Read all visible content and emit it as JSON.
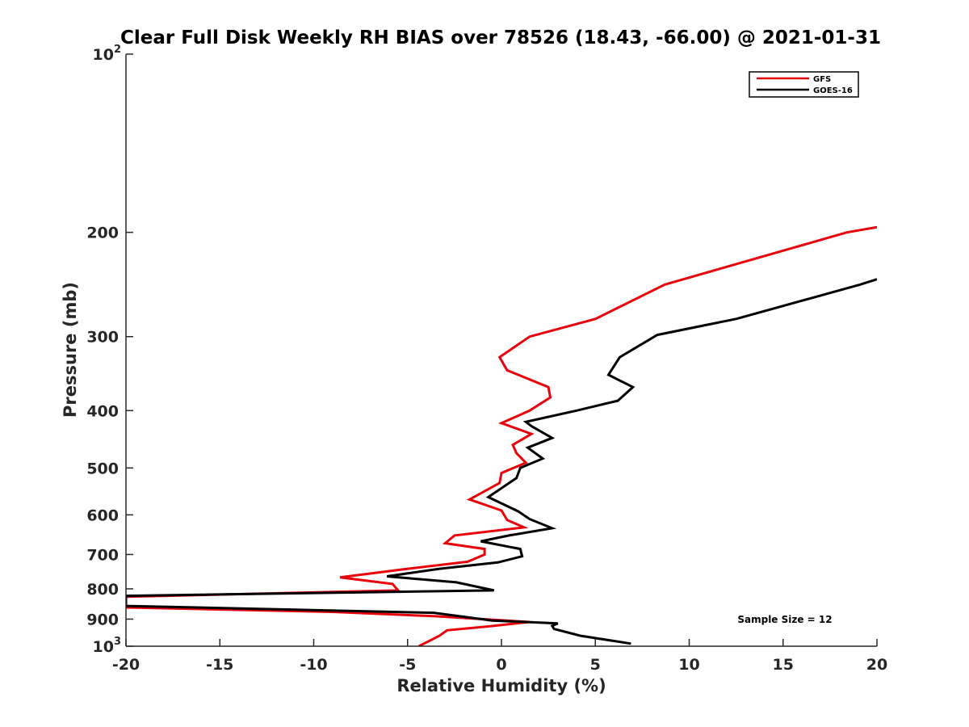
{
  "chart_data": {
    "type": "line",
    "title": "Clear Full Disk Weekly RH BIAS over 78526 (18.43, -66.00) @ 2021-01-31",
    "xlabel": "Relative Humidity (%)",
    "ylabel": "Pressure (mb)",
    "xlim": [
      -20,
      20
    ],
    "ylim": [
      100,
      1000
    ],
    "y_scale": "log",
    "y_reversed": true,
    "grid": false,
    "legend_position": "top-right",
    "x_ticks": [
      "-20",
      "-15",
      "-10",
      "-5",
      "0",
      "5",
      "10",
      "15",
      "20"
    ],
    "y_ticks": [
      {
        "value": 100,
        "label": "10",
        "sup": "2"
      },
      {
        "value": 200,
        "label": "200",
        "sup": ""
      },
      {
        "value": 300,
        "label": "300",
        "sup": ""
      },
      {
        "value": 400,
        "label": "400",
        "sup": ""
      },
      {
        "value": 500,
        "label": "500",
        "sup": ""
      },
      {
        "value": 600,
        "label": "600",
        "sup": ""
      },
      {
        "value": 700,
        "label": "700",
        "sup": ""
      },
      {
        "value": 800,
        "label": "800",
        "sup": ""
      },
      {
        "value": 900,
        "label": "900",
        "sup": ""
      },
      {
        "value": 1000,
        "label": "10",
        "sup": "3"
      }
    ],
    "series": [
      {
        "name": "GFS",
        "color": "#e8000b",
        "points": [
          [
            20.0,
            196
          ],
          [
            18.4,
            200
          ],
          [
            8.7,
            245
          ],
          [
            5.0,
            280
          ],
          [
            1.5,
            300
          ],
          [
            -0.1,
            325
          ],
          [
            0.3,
            342
          ],
          [
            2.5,
            365
          ],
          [
            2.6,
            380
          ],
          [
            1.5,
            400
          ],
          [
            0.0,
            420
          ],
          [
            1.6,
            438
          ],
          [
            0.6,
            457
          ],
          [
            0.8,
            472
          ],
          [
            1.3,
            490
          ],
          [
            0.0,
            510
          ],
          [
            -0.1,
            530
          ],
          [
            -1.7,
            565
          ],
          [
            0.0,
            590
          ],
          [
            0.3,
            612
          ],
          [
            1.2,
            630
          ],
          [
            -2.5,
            650
          ],
          [
            -3.0,
            670
          ],
          [
            -0.9,
            685
          ],
          [
            -0.9,
            700
          ],
          [
            -1.8,
            720
          ],
          [
            -5.3,
            742
          ],
          [
            -8.6,
            765
          ],
          [
            -5.8,
            785
          ],
          [
            -5.5,
            805
          ],
          [
            -20.0,
            825
          ],
          [
            -20.0,
            830
          ],
          [
            -20.0,
            860
          ],
          [
            -9.0,
            875
          ],
          [
            -3.5,
            890
          ],
          [
            -1.5,
            898
          ],
          [
            1.5,
            910
          ],
          [
            -0.6,
            925
          ],
          [
            -2.9,
            940
          ],
          [
            -3.3,
            960
          ],
          [
            -4.4,
            1000
          ]
        ]
      },
      {
        "name": "GOES-16",
        "color": "#000000",
        "points": [
          [
            20.0,
            240
          ],
          [
            19.1,
            245
          ],
          [
            15.8,
            262
          ],
          [
            12.5,
            280
          ],
          [
            8.3,
            298
          ],
          [
            6.3,
            325
          ],
          [
            5.7,
            348
          ],
          [
            7.0,
            365
          ],
          [
            6.2,
            385
          ],
          [
            4.0,
            400
          ],
          [
            1.3,
            418
          ],
          [
            1.6,
            425
          ],
          [
            2.7,
            445
          ],
          [
            1.4,
            462
          ],
          [
            2.2,
            482
          ],
          [
            1.0,
            500
          ],
          [
            0.8,
            520
          ],
          [
            -0.7,
            560
          ],
          [
            0.9,
            592
          ],
          [
            1.5,
            610
          ],
          [
            2.7,
            632
          ],
          [
            0.4,
            650
          ],
          [
            -1.1,
            665
          ],
          [
            1.0,
            685
          ],
          [
            1.1,
            705
          ],
          [
            -0.2,
            722
          ],
          [
            -3.3,
            740
          ],
          [
            -6.1,
            762
          ],
          [
            -2.4,
            780
          ],
          [
            -0.4,
            805
          ],
          [
            -20.0,
            822
          ],
          [
            -20.0,
            826
          ],
          [
            -20.0,
            855
          ],
          [
            -3.6,
            878
          ],
          [
            -0.5,
            905
          ],
          [
            3.0,
            915
          ],
          [
            2.7,
            924
          ],
          [
            2.8,
            935
          ],
          [
            4.2,
            960
          ],
          [
            6.9,
            990
          ]
        ]
      }
    ],
    "annotation": "Sample Size = 12"
  }
}
